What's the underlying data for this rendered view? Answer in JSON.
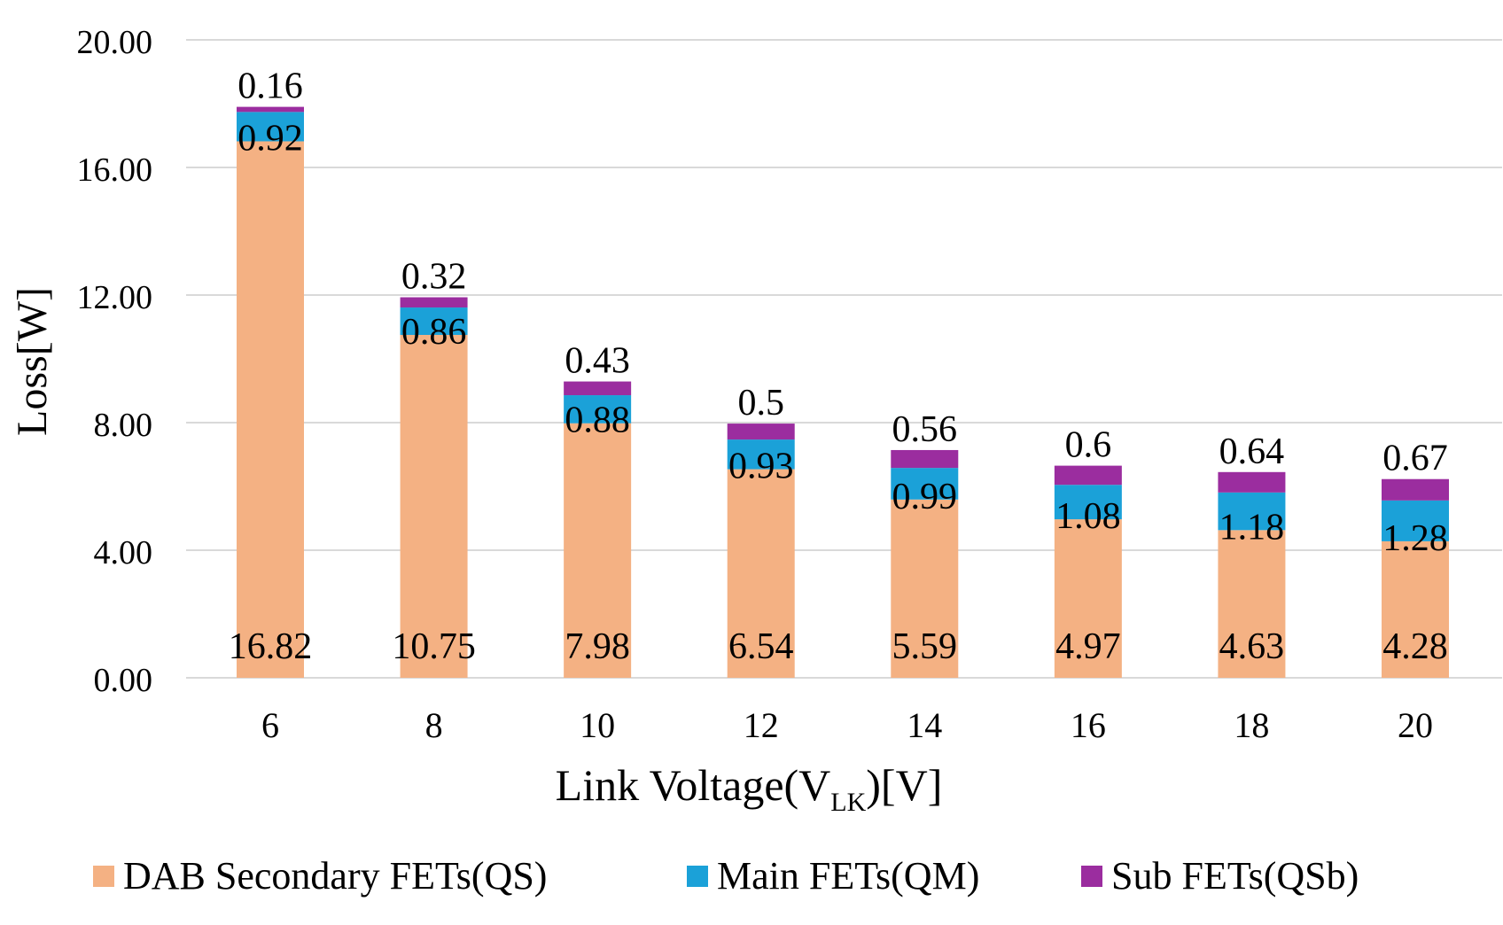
{
  "chart_data": {
    "type": "bar",
    "stacked": true,
    "categories": [
      "6",
      "8",
      "10",
      "12",
      "14",
      "16",
      "18",
      "20"
    ],
    "series": [
      {
        "name": "DAB Secondary FETs(QS)",
        "color": "#F4B183",
        "values": [
          16.82,
          10.75,
          7.98,
          6.54,
          5.59,
          4.97,
          4.63,
          4.28
        ]
      },
      {
        "name": "Main FETs(QM)",
        "color": "#1BA1D8",
        "values": [
          0.92,
          0.86,
          0.88,
          0.93,
          0.99,
          1.08,
          1.18,
          1.28
        ]
      },
      {
        "name": "Sub FETs(QSb)",
        "color": "#9B2D9F",
        "values": [
          0.16,
          0.32,
          0.43,
          0.5,
          0.56,
          0.6,
          0.64,
          0.67
        ]
      }
    ],
    "data_labels": {
      "DAB Secondary FETs(QS)": [
        "16.82",
        "10.75",
        "7.98",
        "6.54",
        "5.59",
        "4.97",
        "4.63",
        "4.28"
      ],
      "Main FETs(QM)": [
        "0.92",
        "0.86",
        "0.88",
        "0.93",
        "0.99",
        "1.08",
        "1.18",
        "1.28"
      ],
      "Sub FETs(QSb)": [
        "0.16",
        "0.32",
        "0.43",
        "0.5",
        "0.56",
        "0.6",
        "0.64",
        "0.67"
      ]
    },
    "yticks": [
      "0.00",
      "4.00",
      "8.00",
      "12.00",
      "16.00",
      "20.00"
    ],
    "ytick_values": [
      0,
      4,
      8,
      12,
      16,
      20
    ],
    "ylim": [
      0,
      20
    ],
    "ylabel": "Loss[W]",
    "xlabel": {
      "main": "Link Voltage(V",
      "sub": "LK",
      "tail": ")[V]"
    },
    "grid": true,
    "legend_position": "bottom"
  },
  "colors": {
    "grid": "#D9D9D9",
    "text": "#000000"
  }
}
